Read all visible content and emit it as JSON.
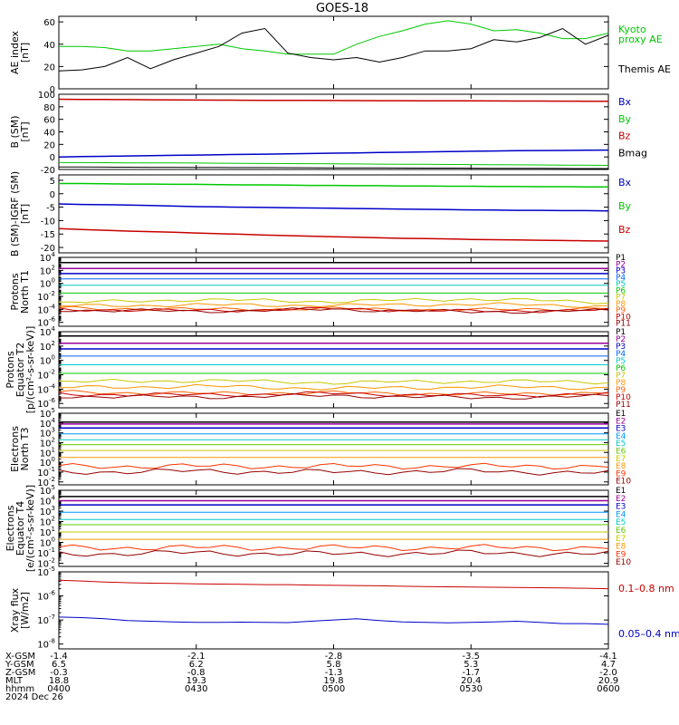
{
  "title": "GOES-18",
  "panels": [
    {
      "id": "ae",
      "ylabel": [
        "AE index",
        "[nT]"
      ],
      "scale": "linear",
      "ylim": [
        0,
        65
      ],
      "yticks": [
        0,
        20,
        40,
        60
      ],
      "legend": [
        {
          "lines": [
            "Kyoto",
            "proxy AE"
          ],
          "color": "#00c800"
        },
        {
          "lines": [
            "Themis AE"
          ],
          "color": "#000000"
        }
      ]
    },
    {
      "id": "bsm",
      "ylabel": [
        "B (SM)",
        "[nT]"
      ],
      "scale": "linear",
      "ylim": [
        -20,
        100
      ],
      "yticks": [
        -20,
        0,
        20,
        40,
        60,
        80,
        100
      ],
      "legend": [
        {
          "lines": [
            "Bx"
          ],
          "color": "#0000c8"
        },
        {
          "lines": [
            "By"
          ],
          "color": "#00c800"
        },
        {
          "lines": [
            "Bz"
          ],
          "color": "#c80000"
        },
        {
          "lines": [
            "Bmag"
          ],
          "color": "#000000"
        }
      ]
    },
    {
      "id": "bigrf",
      "ylabel": [
        "B (SM)-IGRF (SM)",
        "[nT]"
      ],
      "scale": "linear",
      "ylim": [
        -22,
        7
      ],
      "yticks": [
        -20,
        -15,
        -10,
        -5,
        0,
        5
      ],
      "legend": [
        {
          "lines": [
            "Bx"
          ],
          "color": "#0000c8"
        },
        {
          "lines": [
            "By"
          ],
          "color": "#00c800"
        },
        {
          "lines": [
            "Bz"
          ],
          "color": "#c80000"
        }
      ]
    },
    {
      "id": "pnorth",
      "ylabel": [
        "Protons",
        "North T1"
      ],
      "scale": "log",
      "ylim": [
        -6.6,
        4
      ],
      "yticks": [
        4,
        2,
        0,
        -2,
        -4,
        -6
      ],
      "channels": [
        "P1",
        "P2",
        "P3",
        "P4",
        "P5",
        "P6",
        "P7",
        "P8",
        "P9",
        "P10",
        "P11"
      ]
    },
    {
      "id": "peq",
      "ylabel": [
        "Protons",
        "Equator T2",
        "[p/(cm²-s-sr-keV)]"
      ],
      "scale": "log",
      "ylim": [
        -6.6,
        4
      ],
      "yticks": [
        4,
        2,
        0,
        -2,
        -4,
        -6
      ],
      "channels": [
        "P1",
        "P2",
        "P3",
        "P4",
        "P5",
        "P6",
        "P7",
        "P8",
        "P9",
        "P10",
        "P11"
      ]
    },
    {
      "id": "enorth",
      "ylabel": [
        "Electrons",
        "North T3"
      ],
      "scale": "log",
      "ylim": [
        -2.3,
        5
      ],
      "yticks": [
        5,
        4,
        3,
        2,
        1,
        0,
        -1,
        -2
      ],
      "channels": [
        "E1",
        "E2",
        "E3",
        "E4",
        "E5",
        "E6",
        "E7",
        "E8",
        "E9",
        "E10"
      ]
    },
    {
      "id": "eeq",
      "ylabel": [
        "Electrons",
        "Equator T4",
        "[e/(cm²-s-sr-keV)]"
      ],
      "scale": "log",
      "ylim": [
        -2.3,
        5
      ],
      "yticks": [
        5,
        4,
        3,
        2,
        1,
        0,
        -1,
        -2
      ],
      "channels": [
        "E1",
        "E2",
        "E3",
        "E4",
        "E5",
        "E6",
        "E7",
        "E8",
        "E9",
        "E10"
      ]
    },
    {
      "id": "xray",
      "ylabel": [
        "Xray flux",
        "[W/m2]"
      ],
      "scale": "log",
      "ylim": [
        -8.2,
        -5
      ],
      "yticks": [
        -5,
        -6,
        -7,
        -8
      ],
      "legend": [
        {
          "lines": [
            "0.1–0.8 nm"
          ],
          "color": "#c80000"
        },
        {
          "lines": [
            "0.05–0.4 nm"
          ],
          "color": "#0000c8"
        }
      ]
    }
  ],
  "channel_colors": {
    "P": [
      "#000000",
      "#9b009b",
      "#0000c8",
      "#0064ff",
      "#00c8c8",
      "#00c800",
      "#c8c800",
      "#ff9600",
      "#ff6400",
      "#c80000",
      "#960000"
    ],
    "E": [
      "#000000",
      "#9b009b",
      "#0000c8",
      "#0096ff",
      "#00c8c8",
      "#64c800",
      "#c8c800",
      "#ff9600",
      "#ff3200",
      "#960000"
    ]
  },
  "ephem": {
    "rows": [
      {
        "label": "X-GSM",
        "values": [
          "-1.4",
          "-2.1",
          "-2.8",
          "-3.5",
          "-4.1"
        ]
      },
      {
        "label": "Y-GSM",
        "values": [
          "6.5",
          "6.2",
          "5.8",
          "5.3",
          "4.7"
        ]
      },
      {
        "label": "Z-GSM",
        "values": [
          "-0.3",
          "-0.8",
          "-1.3",
          "-1.7",
          "-2.0"
        ]
      },
      {
        "label": "MLT",
        "values": [
          "18.8",
          "19.3",
          "19.8",
          "20.4",
          "20.9"
        ]
      },
      {
        "label": "hhmm",
        "values": [
          "0400",
          "0430",
          "0500",
          "0530",
          "0600"
        ]
      }
    ],
    "date": "2024 Dec 26"
  },
  "chart_data": {
    "type": "line",
    "x_time_ticks": [
      "0400",
      "0430",
      "0500",
      "0530",
      "0600"
    ],
    "time_range": [
      "2024-12-26T04:00",
      "2024-12-26T06:00"
    ],
    "x": [
      0,
      5,
      10,
      15,
      20,
      25,
      30,
      35,
      40,
      45,
      50,
      55,
      60,
      65,
      70,
      75,
      80,
      85,
      90,
      95,
      100,
      105,
      110,
      115,
      120
    ],
    "x_units": "minutes after 04:00",
    "ae": {
      "kyoto_proxy": [
        38,
        38,
        37,
        34,
        34,
        36,
        38,
        40,
        36,
        34,
        31,
        31,
        31,
        40,
        47,
        52,
        58,
        61,
        58,
        52,
        53,
        50,
        45,
        45,
        50
      ],
      "themis": [
        16,
        17,
        20,
        28,
        18,
        26,
        32,
        38,
        50,
        54,
        32,
        28,
        26,
        28,
        24,
        28,
        34,
        34,
        36,
        44,
        42,
        46,
        54,
        40,
        48
      ]
    },
    "b_sm": {
      "Bx": [
        0,
        0.5,
        1,
        1.5,
        2,
        2.5,
        3,
        3.5,
        4,
        4.5,
        5,
        5.5,
        6,
        6.5,
        7,
        7.5,
        8,
        8.5,
        9,
        9.5,
        10,
        10.2,
        10.4,
        10.6,
        11
      ],
      "By": [
        -9,
        -9,
        -9.2,
        -9.4,
        -9.5,
        -9.6,
        -9.8,
        -10,
        -10.2,
        -10.4,
        -10.6,
        -10.8,
        -11,
        -11.2,
        -11.4,
        -11.6,
        -11.8,
        -12,
        -12.2,
        -12.4,
        -12.6,
        -12.8,
        -13,
        -13.2,
        -13.5
      ],
      "Bz": [
        92,
        91.8,
        91.6,
        91.4,
        91.2,
        91,
        90.8,
        90.6,
        90.4,
        90.3,
        90.2,
        90.1,
        90,
        89.9,
        89.8,
        89.7,
        89.6,
        89.5,
        89.4,
        89.3,
        89.2,
        89.1,
        89,
        88.9,
        88.8
      ],
      "Bmag": [
        -16,
        -16,
        -16.2,
        -16.4,
        -16.5,
        -16.6,
        -16.7,
        -16.8,
        -16.9,
        -17,
        -17.1,
        -17.2,
        -17.4,
        -17.5,
        -17.6,
        -17.7,
        -17.8,
        -17.9,
        -18,
        -18.1,
        -18.2,
        -18.3,
        -18.4,
        -18.5,
        -18.6
      ]
    },
    "b_minus_igrf": {
      "Bx": [
        -3.8,
        -4,
        -4.1,
        -4.2,
        -4.4,
        -4.6,
        -4.8,
        -4.9,
        -5,
        -5.1,
        -5.2,
        -5.3,
        -5.4,
        -5.5,
        -5.6,
        -5.7,
        -5.8,
        -5.9,
        -6,
        -6.1,
        -6.2,
        -6.2,
        -6.3,
        -6.3,
        -6.4
      ],
      "By": [
        3.8,
        3.8,
        3.7,
        3.6,
        3.6,
        3.5,
        3.5,
        3.4,
        3.3,
        3.3,
        3.2,
        3.1,
        3.1,
        3.0,
        3.0,
        2.9,
        2.9,
        2.8,
        2.8,
        2.7,
        2.7,
        2.6,
        2.6,
        2.5,
        2.5
      ],
      "Bz": [
        -13,
        -13.3,
        -13.6,
        -13.9,
        -14.1,
        -14.3,
        -14.6,
        -14.9,
        -15.1,
        -15.4,
        -15.6,
        -15.8,
        -16,
        -16.2,
        -16.4,
        -16.6,
        -16.7,
        -16.8,
        -17,
        -17.1,
        -17.2,
        -17.3,
        -17.4,
        -17.5,
        -17.6
      ]
    },
    "protons_north_log10": [
      {
        "name": "P1",
        "values": [
          3.2,
          3.2,
          3.2,
          3.2,
          3.2
        ]
      },
      {
        "name": "P2",
        "values": [
          2.3,
          2.3,
          2.3,
          2.3,
          2.3
        ]
      },
      {
        "name": "P3",
        "values": [
          1.5,
          1.5,
          1.5,
          1.5,
          1.5
        ]
      },
      {
        "name": "P4",
        "values": [
          0.7,
          0.7,
          0.7,
          0.7,
          0.7
        ]
      },
      {
        "name": "P5",
        "values": [
          -0.3,
          -0.3,
          -0.3,
          -0.3,
          -0.3
        ]
      },
      {
        "name": "P6",
        "values": [
          -1.5,
          -1.5,
          -1.5,
          -1.5,
          -1.5
        ]
      },
      {
        "name": "P7",
        "values": [
          -3.0,
          -2.5,
          -2.8,
          -2.4,
          -2.9
        ]
      },
      {
        "name": "P8",
        "values": [
          -3.5,
          -3.3,
          -3.4,
          -3.2,
          -3.5
        ]
      },
      {
        "name": "P9",
        "values": [
          -3.8,
          -4.0,
          -3.9,
          -4.1,
          -3.8
        ]
      },
      {
        "name": "P10",
        "values": [
          -4.0,
          -4.2,
          -3.9,
          -4.3,
          -4.1
        ]
      },
      {
        "name": "P11",
        "values": [
          -4.1,
          -4.3,
          -4.0,
          -4.4,
          -4.2
        ]
      }
    ],
    "protons_equator_log10": [
      {
        "name": "P1",
        "values": [
          3.4,
          3.4,
          3.4,
          3.4,
          3.4
        ]
      },
      {
        "name": "P2",
        "values": [
          2.4,
          2.4,
          2.4,
          2.4,
          2.4
        ]
      },
      {
        "name": "P3",
        "values": [
          1.6,
          1.6,
          1.6,
          1.6,
          1.6
        ]
      },
      {
        "name": "P4",
        "values": [
          0.6,
          0.6,
          0.6,
          0.6,
          0.6
        ]
      },
      {
        "name": "P5",
        "values": [
          -0.6,
          -0.6,
          -0.6,
          -0.6,
          -0.6
        ]
      },
      {
        "name": "P6",
        "values": [
          -1.8,
          -1.8,
          -1.8,
          -1.8,
          -1.8
        ]
      },
      {
        "name": "P7",
        "values": [
          -3.0,
          -2.8,
          -3.1,
          -2.9,
          -3.0
        ]
      },
      {
        "name": "P8",
        "values": [
          -3.8,
          -3.6,
          -3.9,
          -3.7,
          -3.8
        ]
      },
      {
        "name": "P9",
        "values": [
          -4.4,
          -4.6,
          -4.5,
          -4.7,
          -4.5
        ]
      },
      {
        "name": "P10",
        "values": [
          -4.7,
          -4.8,
          -4.6,
          -4.9,
          -4.7
        ]
      },
      {
        "name": "P11",
        "values": [
          -5.0,
          -5.1,
          -4.9,
          -5.2,
          -5.0
        ]
      }
    ],
    "electrons_north_log10": [
      {
        "name": "E1",
        "values": [
          4.1,
          4.1,
          4.1,
          4.1,
          4.1
        ]
      },
      {
        "name": "E2",
        "values": [
          3.9,
          3.9,
          3.9,
          3.9,
          3.9
        ]
      },
      {
        "name": "E3",
        "values": [
          3.5,
          3.5,
          3.5,
          3.5,
          3.5
        ]
      },
      {
        "name": "E4",
        "values": [
          2.9,
          2.9,
          2.9,
          2.9,
          2.9
        ]
      },
      {
        "name": "E5",
        "values": [
          2.3,
          2.3,
          2.3,
          2.3,
          2.3
        ]
      },
      {
        "name": "E6",
        "values": [
          1.8,
          1.8,
          1.8,
          1.8,
          1.8
        ]
      },
      {
        "name": "E7",
        "values": [
          1.2,
          1.2,
          1.2,
          1.2,
          1.2
        ]
      },
      {
        "name": "E8",
        "values": [
          0.5,
          0.5,
          0.5,
          0.5,
          0.5
        ]
      },
      {
        "name": "E9",
        "values": [
          -0.4,
          -0.4,
          -0.4,
          -0.4,
          -0.4
        ]
      },
      {
        "name": "E10",
        "values": [
          -1.0,
          -0.9,
          -1.0,
          -0.9,
          -1.1
        ]
      }
    ],
    "electrons_equator_log10": [
      {
        "name": "E1",
        "values": [
          4.4,
          4.4,
          4.4,
          4.4,
          4.4
        ]
      },
      {
        "name": "E2",
        "values": [
          4.0,
          4.0,
          4.0,
          4.0,
          4.0
        ]
      },
      {
        "name": "E3",
        "values": [
          3.6,
          3.6,
          3.6,
          3.6,
          3.6
        ]
      },
      {
        "name": "E4",
        "values": [
          2.9,
          2.9,
          2.9,
          2.9,
          2.9
        ]
      },
      {
        "name": "E5",
        "values": [
          2.2,
          2.2,
          2.2,
          2.2,
          2.2
        ]
      },
      {
        "name": "E6",
        "values": [
          1.7,
          1.7,
          1.7,
          1.7,
          1.7
        ]
      },
      {
        "name": "E7",
        "values": [
          1.0,
          1.0,
          1.0,
          1.0,
          1.0
        ]
      },
      {
        "name": "E8",
        "values": [
          0.3,
          0.3,
          0.3,
          0.3,
          0.3
        ]
      },
      {
        "name": "E9",
        "values": [
          -0.5,
          -0.5,
          -0.5,
          -0.5,
          -0.5
        ]
      },
      {
        "name": "E10",
        "values": [
          -1.1,
          -1.0,
          -1.1,
          -1.0,
          -1.1
        ]
      }
    ],
    "xray_log10": {
      "0.1–0.8 nm": [
        -5.35,
        -5.38,
        -5.42,
        -5.45,
        -5.47,
        -5.48,
        -5.5,
        -5.51,
        -5.52,
        -5.53,
        -5.53,
        -5.55,
        -5.56,
        -5.57,
        -5.58,
        -5.6,
        -5.61,
        -5.62,
        -5.63,
        -5.64,
        -5.65,
        -5.66,
        -5.67,
        -5.68,
        -5.7
      ],
      "0.05–0.4 nm": [
        -6.88,
        -6.9,
        -6.95,
        -7.02,
        -7.05,
        -7.08,
        -7.1,
        -7.1,
        -7.09,
        -7.1,
        -7.11,
        -7.05,
        -7.0,
        -6.95,
        -7.02,
        -7.08,
        -7.1,
        -7.12,
        -7.1,
        -7.08,
        -7.05,
        -7.1,
        -7.15,
        -7.15,
        -7.18
      ]
    }
  }
}
